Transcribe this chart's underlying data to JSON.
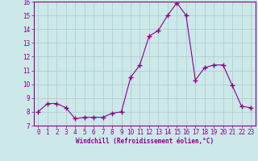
{
  "x": [
    0,
    1,
    2,
    3,
    4,
    5,
    6,
    7,
    8,
    9,
    10,
    11,
    12,
    13,
    14,
    15,
    16,
    17,
    18,
    19,
    20,
    21,
    22,
    23
  ],
  "y": [
    8.0,
    8.6,
    8.6,
    8.3,
    7.5,
    7.6,
    7.6,
    7.6,
    7.9,
    8.0,
    10.5,
    11.4,
    13.5,
    13.9,
    15.0,
    15.9,
    15.0,
    10.3,
    11.2,
    11.4,
    11.4,
    9.9,
    8.4,
    8.3
  ],
  "line_color": "#8b008b",
  "marker": "+",
  "marker_size": 4,
  "bg_color": "#cce8e8",
  "grid_color": "#b0d0d0",
  "xlabel": "Windchill (Refroidissement éolien,°C)",
  "xlabel_color": "#8b008b",
  "tick_color": "#8b008b",
  "spine_color": "#8b008b",
  "ylim": [
    7,
    16
  ],
  "xlim": [
    -0.5,
    23.5
  ],
  "yticks": [
    7,
    8,
    9,
    10,
    11,
    12,
    13,
    14,
    15,
    16
  ],
  "xticks": [
    0,
    1,
    2,
    3,
    4,
    5,
    6,
    7,
    8,
    9,
    10,
    11,
    12,
    13,
    14,
    15,
    16,
    17,
    18,
    19,
    20,
    21,
    22,
    23
  ],
  "tick_fontsize": 5.5,
  "xlabel_fontsize": 5.5
}
